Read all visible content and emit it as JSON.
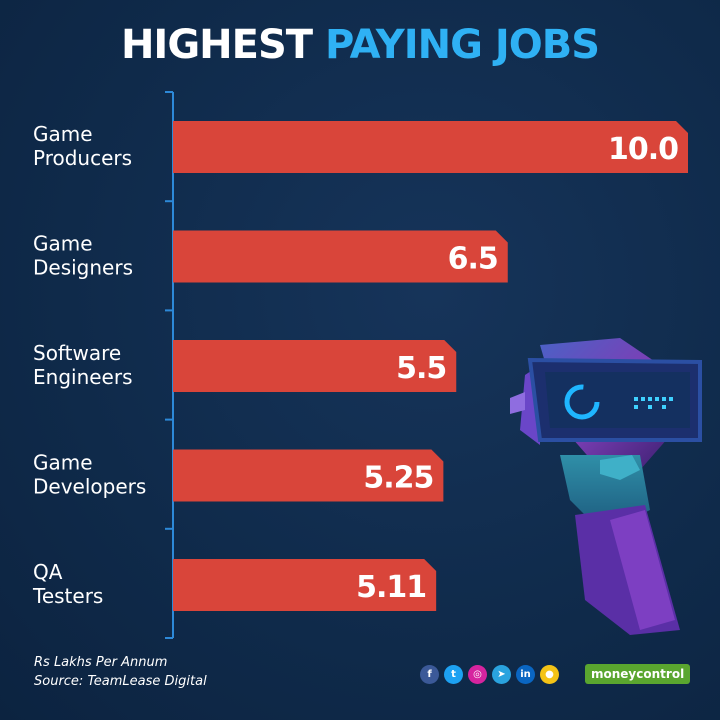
{
  "title": {
    "part1": "HIGHEST",
    "part2": "PAYING JOBS"
  },
  "chart_data": {
    "type": "bar",
    "orientation": "horizontal",
    "title": "HIGHEST PAYING JOBS",
    "categories": [
      [
        "Game",
        "Producers"
      ],
      [
        "Game",
        "Designers"
      ],
      [
        "Software",
        "Engineers"
      ],
      [
        "Game",
        "Developers"
      ],
      [
        "QA",
        "Testers"
      ]
    ],
    "values": [
      10.0,
      6.5,
      5.5,
      5.25,
      5.11
    ],
    "value_labels": [
      "10.0",
      "6.5",
      "5.5",
      "5.25",
      "5.11"
    ],
    "unit": "Rs Lakhs Per Annum",
    "xlim": [
      0,
      10.0
    ],
    "bar_color": "#d9453a"
  },
  "footnote": {
    "unit_line": "Rs Lakhs Per Annum",
    "source_line": "Source: TeamLease Digital"
  },
  "social": [
    {
      "name": "facebook-icon",
      "glyph": "f",
      "color": "#3b5998"
    },
    {
      "name": "twitter-icon",
      "glyph": "t",
      "color": "#1da1f2"
    },
    {
      "name": "instagram-icon",
      "glyph": "◎",
      "color": "#d6249f"
    },
    {
      "name": "telegram-icon",
      "glyph": "➤",
      "color": "#2aa3df"
    },
    {
      "name": "linkedin-icon",
      "glyph": "in",
      "color": "#0a66c2"
    },
    {
      "name": "koo-icon",
      "glyph": "●",
      "color": "#f4c316"
    }
  ],
  "brand": {
    "part1": "money",
    "part2": "control"
  },
  "colors": {
    "background": "#0f2a4a",
    "accent": "#2fb1f4",
    "bar": "#d9453a",
    "axis": "#2d89d8"
  }
}
